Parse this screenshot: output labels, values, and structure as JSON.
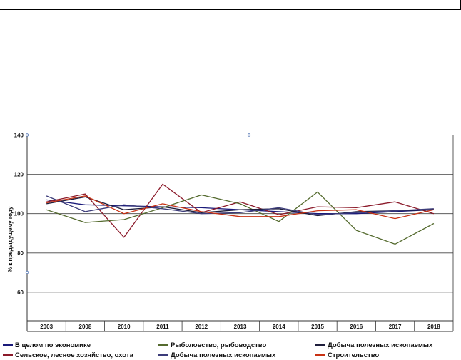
{
  "chart_data": {
    "type": "line",
    "ylabel": "% к предыдущему году",
    "xlabel": "",
    "title": "",
    "ylim": [
      40,
      140
    ],
    "yticks": [
      60,
      80,
      100,
      120,
      140
    ],
    "grid": true,
    "legend_placement": "bottom",
    "categories": [
      "2003",
      "2008",
      "2010",
      "2011",
      "2012",
      "2013",
      "2014",
      "2015",
      "2016",
      "2017",
      "2018"
    ],
    "series": [
      {
        "name": "В целом по экономике",
        "color": "#1a1a7a",
        "values": [
          107,
          104.5,
          104,
          103.5,
          103,
          102,
          101,
          100,
          100,
          101,
          102
        ]
      },
      {
        "name": "Сельское, лесное хозяйство, охота",
        "color": "#8b1a2a",
        "values": [
          106,
          110,
          88,
          115,
          100.5,
          106,
          99.5,
          103.5,
          103,
          106,
          100
        ]
      },
      {
        "name": "Рыболовство, рыбоводство",
        "color": "#556b2f",
        "values": [
          102,
          95.5,
          97,
          103,
          109.5,
          105,
          96,
          111,
          91.5,
          84.5,
          95
        ]
      },
      {
        "name": "Добыча полезных ископаемых",
        "color": "#1e1e3c",
        "values": [
          105,
          108.5,
          102,
          103.5,
          100.5,
          102,
          102.5,
          99,
          101,
          101.5,
          102
        ]
      },
      {
        "name": "Добыча полезных ископаемых",
        "color": "#3c3c7a",
        "values": [
          109,
          101,
          104.5,
          102.5,
          100,
          100.5,
          103,
          99.5,
          100.5,
          101.5,
          102.5
        ]
      },
      {
        "name": "Строительство",
        "color": "#c83214",
        "values": [
          105.5,
          109,
          100,
          105,
          101,
          98.5,
          98.5,
          101.5,
          102,
          97.5,
          102
        ]
      }
    ]
  },
  "legend_order": [
    0,
    2,
    3,
    1,
    4,
    5
  ]
}
